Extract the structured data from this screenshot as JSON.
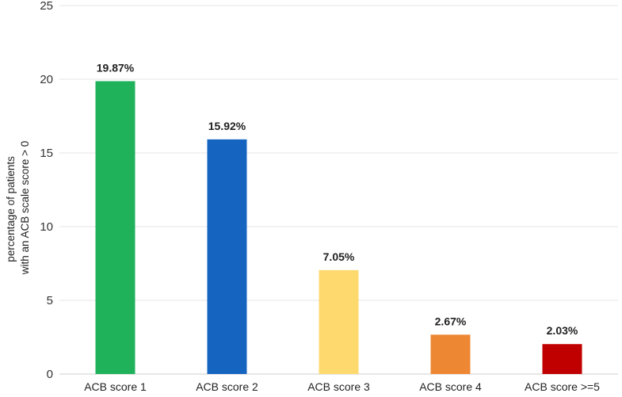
{
  "chart_data": {
    "type": "bar",
    "title": "",
    "xlabel": "",
    "ylabel_lines": [
      "percentage of patients",
      "with an ACB scale score > 0"
    ],
    "categories": [
      "ACB score 1",
      "ACB score 2",
      "ACB score 3",
      "ACB score 4",
      "ACB score >=5"
    ],
    "values": [
      19.87,
      15.92,
      7.05,
      2.67,
      2.03
    ],
    "data_labels": [
      "19.87%",
      "15.92%",
      "7.05%",
      "2.67%",
      "2.03%"
    ],
    "colors": [
      "#1fb25a",
      "#1565c0",
      "#fdd96e",
      "#ee8733",
      "#c00000"
    ],
    "ylim": [
      0,
      25
    ],
    "yticks": [
      0,
      5,
      10,
      15,
      20,
      25
    ],
    "grid": true,
    "legend": "none"
  }
}
